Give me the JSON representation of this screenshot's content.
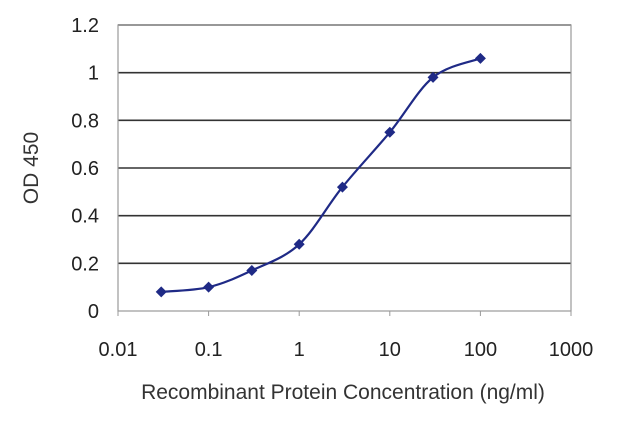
{
  "chart_data": {
    "type": "scatter",
    "title": "",
    "xlabel": "Recombinant Protein Concentration (ng/ml)",
    "ylabel": "OD 450",
    "x_scale": "log",
    "xlim": [
      0.01,
      1000
    ],
    "ylim": [
      0,
      1.2
    ],
    "x_ticks": [
      "0.01",
      "0.1",
      "1",
      "10",
      "100",
      "1000"
    ],
    "y_ticks": [
      "0",
      "0.2",
      "0.4",
      "0.6",
      "0.8",
      "1",
      "1.2"
    ],
    "grid": "horizontal",
    "series": [
      {
        "x": [
          0.03,
          0.1,
          0.3,
          1,
          3,
          10,
          30,
          100
        ],
        "y": [
          0.08,
          0.1,
          0.17,
          0.28,
          0.52,
          0.75,
          0.98,
          1.06
        ],
        "line": "smooth",
        "marker": "diamond"
      }
    ],
    "colors": {
      "series": "#1f2a86",
      "grid": "#333333",
      "axes": "#999999"
    }
  }
}
